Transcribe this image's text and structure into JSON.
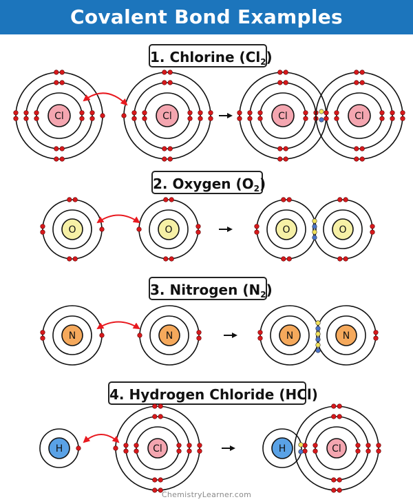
{
  "header": {
    "title": "Covalent Bond Examples"
  },
  "sections": [
    {
      "number": "1.",
      "name": "Chlorine",
      "formula_prefix": "(Cl",
      "formula_sub": "2",
      "formula_suffix": ")"
    },
    {
      "number": "2.",
      "name": "Oxygen",
      "formula_prefix": "(O",
      "formula_sub": "2",
      "formula_suffix": ")"
    },
    {
      "number": "3.",
      "name": "Nitrogen",
      "formula_prefix": "(N",
      "formula_sub": "2",
      "formula_suffix": ")"
    },
    {
      "number": "4.",
      "name": "Hydrogen Chloride",
      "formula_prefix": "(HCl",
      "formula_sub": "",
      "formula_suffix": ")"
    }
  ],
  "atoms": {
    "chlorine": {
      "symbol": "Cl",
      "color": "#f4a6b0"
    },
    "oxygen": {
      "symbol": "O",
      "color": "#f6f0a6"
    },
    "nitrogen": {
      "symbol": "N",
      "color": "#f5a95c"
    },
    "hydrogen": {
      "symbol": "H",
      "color": "#5aa2e6"
    }
  },
  "colors": {
    "header_bg": "#1c75bc",
    "electron": "#d7191c",
    "shared_electron_a": "#f3e35a",
    "shared_electron_b": "#4a74c9",
    "transfer_arrow": "#e8191f",
    "reaction_arrow": "#111111"
  },
  "footer": {
    "text": "ChemistryLearner.com"
  }
}
